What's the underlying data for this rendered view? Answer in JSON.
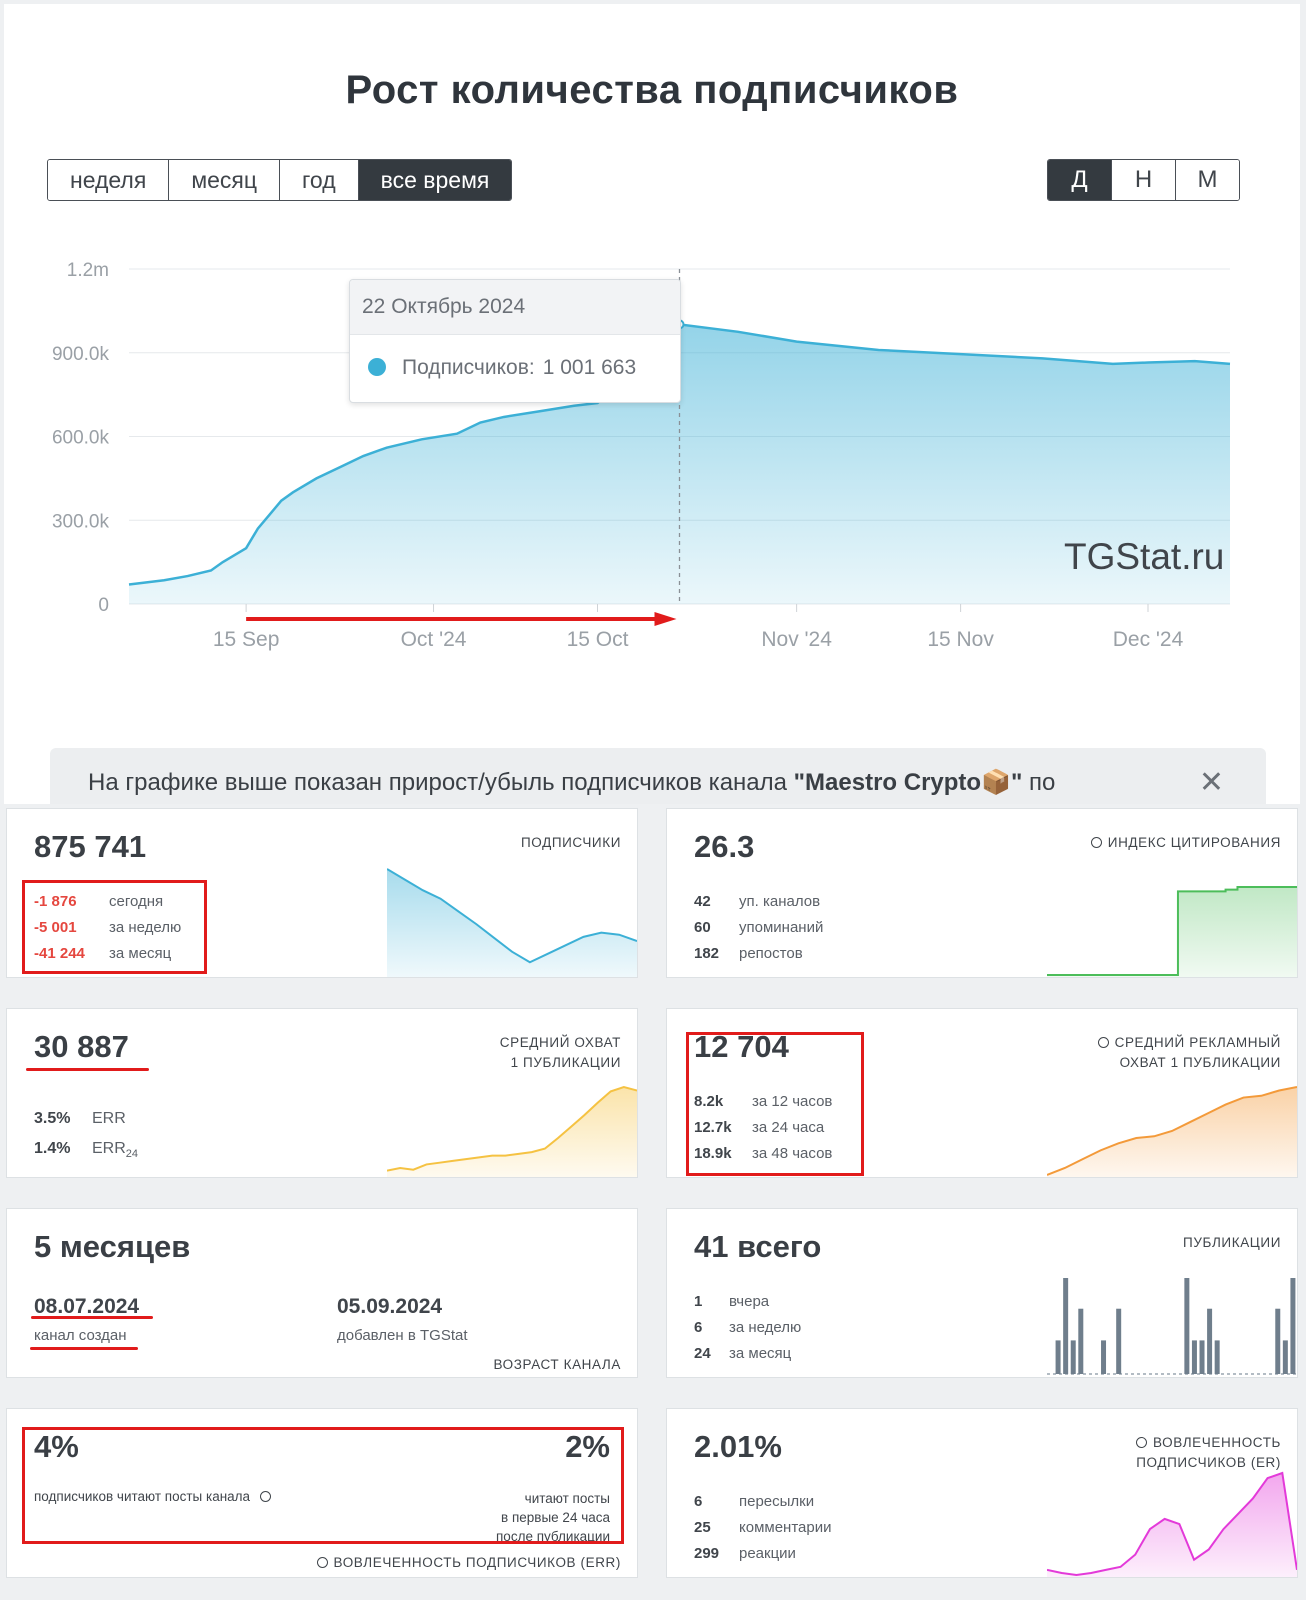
{
  "header": {
    "title": "Рост количества подписчиков"
  },
  "period_buttons": [
    "неделя",
    "месяц",
    "год",
    "все время"
  ],
  "granularity_buttons": [
    "Д",
    "Н",
    "М"
  ],
  "chart_data": {
    "type": "area",
    "title": "Рост количества подписчиков",
    "xlabel": "",
    "ylabel": "",
    "y_tick_labels": [
      "0",
      "300.0k",
      "600.0k",
      "900.0k",
      "1.2m"
    ],
    "ylim": [
      0,
      1200000
    ],
    "x_tick_labels": [
      "15 Sep",
      "Oct '24",
      "15 Oct",
      "Nov '24",
      "15 Nov",
      "Dec '24"
    ],
    "x_tick_dates": [
      "2024-09-15",
      "2024-10-01",
      "2024-10-15",
      "2024-11-01",
      "2024-11-15",
      "2024-12-01"
    ],
    "xlim": [
      "2024-09-05",
      "2024-12-08"
    ],
    "grid": true,
    "color": "#3cb0d6",
    "series": [
      {
        "name": "Подписчиков",
        "points": [
          [
            "2024-09-05",
            70000
          ],
          [
            "2024-09-08",
            85000
          ],
          [
            "2024-09-10",
            100000
          ],
          [
            "2024-09-12",
            120000
          ],
          [
            "2024-09-13",
            150000
          ],
          [
            "2024-09-14",
            175000
          ],
          [
            "2024-09-15",
            200000
          ],
          [
            "2024-09-16",
            270000
          ],
          [
            "2024-09-17",
            320000
          ],
          [
            "2024-09-18",
            370000
          ],
          [
            "2024-09-19",
            400000
          ],
          [
            "2024-09-21",
            450000
          ],
          [
            "2024-09-23",
            490000
          ],
          [
            "2024-09-25",
            530000
          ],
          [
            "2024-09-27",
            560000
          ],
          [
            "2024-09-30",
            590000
          ],
          [
            "2024-10-03",
            610000
          ],
          [
            "2024-10-05",
            650000
          ],
          [
            "2024-10-07",
            670000
          ],
          [
            "2024-10-10",
            690000
          ],
          [
            "2024-10-13",
            710000
          ],
          [
            "2024-10-15",
            720000
          ],
          [
            "2024-10-17",
            790000
          ],
          [
            "2024-10-19",
            880000
          ],
          [
            "2024-10-20",
            950000
          ],
          [
            "2024-10-22",
            1001663
          ],
          [
            "2024-10-27",
            975000
          ],
          [
            "2024-11-01",
            940000
          ],
          [
            "2024-11-08",
            910000
          ],
          [
            "2024-11-15",
            895000
          ],
          [
            "2024-11-22",
            880000
          ],
          [
            "2024-11-28",
            860000
          ],
          [
            "2024-12-01",
            865000
          ],
          [
            "2024-12-05",
            870000
          ],
          [
            "2024-12-08",
            860000
          ]
        ]
      }
    ],
    "tooltip": {
      "date": "22 Октябрь 2024",
      "label": "Подписчиков:",
      "value": "1 001 663"
    },
    "watermark": "TGStat.ru"
  },
  "info_banner": {
    "text_before": "На графике выше показан прирост/убыль подписчиков канала ",
    "channel": "\"Maestro Crypto📦\"",
    "text_after": " по"
  },
  "cards": {
    "subscribers": {
      "value": "875 741",
      "label": "ПОДПИСЧИКИ",
      "rows": [
        {
          "v": "-1 876",
          "t": "сегодня"
        },
        {
          "v": "-5 001",
          "t": "за неделю"
        },
        {
          "v": "-41 244",
          "t": "за месяц"
        }
      ],
      "spark_color": "#3cb0d6",
      "spark": [
        1.0,
        0.9,
        0.8,
        0.72,
        0.6,
        0.48,
        0.35,
        0.22,
        0.12,
        0.2,
        0.28,
        0.36,
        0.4,
        0.38,
        0.32
      ]
    },
    "citation": {
      "value": "26.3",
      "label": "ИНДЕКС ЦИТИРОВАНИЯ",
      "rows": [
        {
          "v": "42",
          "t": "уп. каналов"
        },
        {
          "v": "60",
          "t": "упоминаний"
        },
        {
          "v": "182",
          "t": "репостов"
        }
      ],
      "spark_color": "#4cbd5a",
      "spark": [
        0,
        0,
        0,
        0,
        0,
        0,
        0,
        0,
        0,
        0,
        0,
        0.95,
        0.95,
        0.95,
        0.95,
        0.97,
        1,
        1,
        1,
        1,
        1,
        1
      ]
    },
    "reach": {
      "value": "30 887",
      "label_line1": "СРЕДНИЙ ОХВАТ",
      "label_line2": "1 ПУБЛИКАЦИИ",
      "err_value": "3.5%",
      "err_label": "ERR",
      "err24_value": "1.4%",
      "err24_label": "ERR",
      "err24_sub": "24",
      "spark_color": "#f5c242",
      "spark": [
        0.05,
        0.08,
        0.06,
        0.12,
        0.14,
        0.16,
        0.18,
        0.2,
        0.22,
        0.22,
        0.24,
        0.26,
        0.3,
        0.42,
        0.55,
        0.68,
        0.82,
        0.95,
        1.0,
        0.96
      ]
    },
    "ad_reach": {
      "value": "12 704",
      "label_line1": "СРЕДНИЙ РЕКЛАМНЫЙ",
      "label_line2": "ОХВАТ 1 ПУБЛИКАЦИИ",
      "rows": [
        {
          "v": "8.2k",
          "t": "за 12 часов"
        },
        {
          "v": "12.7k",
          "t": "за 24 часа"
        },
        {
          "v": "18.9k",
          "t": "за 48 часов"
        }
      ],
      "spark_color": "#f39a3a",
      "spark": [
        0.0,
        0.08,
        0.18,
        0.28,
        0.36,
        0.42,
        0.44,
        0.5,
        0.6,
        0.7,
        0.8,
        0.88,
        0.9,
        0.96,
        1.0
      ]
    },
    "age": {
      "value": "5 месяцев",
      "created_date": "08.07.2024",
      "created_label": "канал создан",
      "added_date": "05.09.2024",
      "added_label": "добавлен в TGStat",
      "label": "ВОЗРАСТ КАНАЛА"
    },
    "posts": {
      "value": "41 всего",
      "label": "ПУБЛИКАЦИИ",
      "rows": [
        {
          "v": "1",
          "t": "вчера"
        },
        {
          "v": "6",
          "t": "за неделю"
        },
        {
          "v": "24",
          "t": "за месяц"
        }
      ],
      "spark_color": "#6f7e8c",
      "bars": [
        0,
        0.35,
        1.0,
        0.35,
        0.68,
        0,
        0,
        0.35,
        0,
        0.68,
        0,
        0,
        0,
        0,
        0,
        0,
        0,
        0,
        1.0,
        0.35,
        0.35,
        0.68,
        0.35,
        0,
        0,
        0,
        0,
        0,
        0,
        0,
        0.68,
        0.35,
        1.0
      ]
    },
    "readers": {
      "value_left": "4%",
      "label_left": "подписчиков читают посты канала",
      "value_right": "2%",
      "label_right_1": "читают посты",
      "label_right_2": "в первые 24 часа",
      "label_right_3": "после публикации",
      "footer": "ВОВЛЕЧЕННОСТЬ ПОДПИСЧИКОВ (ERR)"
    },
    "engagement": {
      "value": "2.01%",
      "label_line1": "ВОВЛЕЧЕННОСТЬ",
      "label_line2": "ПОДПИСЧИКОВ (ER)",
      "rows": [
        {
          "v": "6",
          "t": "пересылки"
        },
        {
          "v": "25",
          "t": "комментарии"
        },
        {
          "v": "299",
          "t": "реакции"
        }
      ],
      "spark_color": "#e33ad9",
      "spark": [
        0.05,
        0.02,
        0.0,
        0.02,
        0.05,
        0.08,
        0.2,
        0.45,
        0.55,
        0.5,
        0.15,
        0.25,
        0.45,
        0.6,
        0.75,
        0.95,
        1.0,
        0.05
      ]
    }
  }
}
